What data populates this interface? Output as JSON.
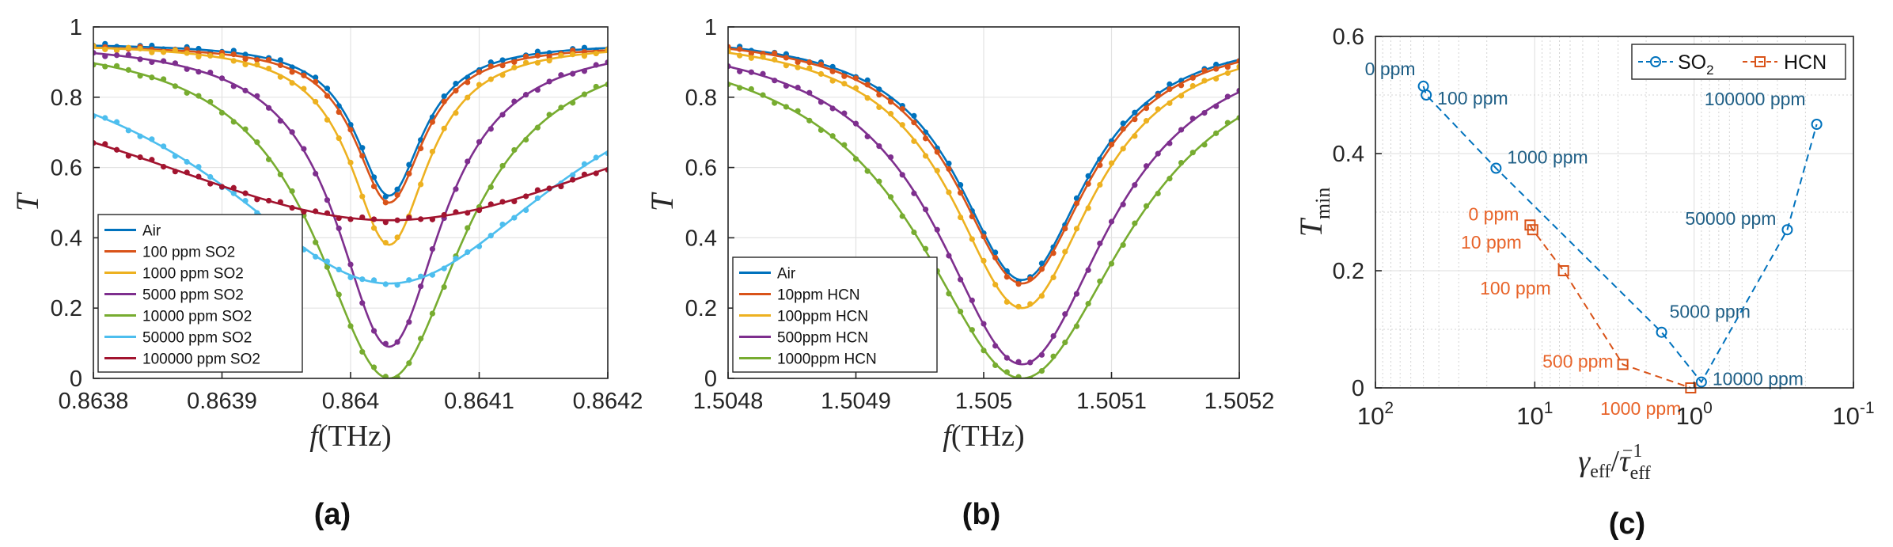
{
  "colors": {
    "blue": "#0072BD",
    "orange": "#D95319",
    "yellow": "#EDB120",
    "purple": "#7E2F8E",
    "green": "#77AC30",
    "lightblue": "#4DBEEE",
    "darkred": "#A2142F",
    "so2_text": "#1F5F86",
    "hcn_text": "#E8642A",
    "grid": "#e3e3e3",
    "axis": "#262626"
  },
  "chart_data": [
    {
      "id": "a",
      "panel_label": "(a)",
      "type": "line",
      "xlabel_italic": "f",
      "xlabel_unit": "(THz)",
      "ylabel": "T",
      "xlim": [
        0.8638,
        0.8642
      ],
      "ylim": [
        0,
        1
      ],
      "xticks": [
        0.8638,
        0.8639,
        0.864,
        0.8641,
        0.8642
      ],
      "xtick_labels": [
        "0.8638",
        "0.8639",
        "0.864",
        "0.8641",
        "0.8642"
      ],
      "yticks": [
        0,
        0.2,
        0.4,
        0.6,
        0.8,
        1
      ],
      "ytick_labels": [
        "0",
        "0.2",
        "0.4",
        "0.6",
        "0.8",
        "1"
      ],
      "legend": "bottom-left",
      "series": [
        {
          "name": "Air",
          "color": "blue",
          "base": 0.955,
          "min": 0.52,
          "center": 0.86403,
          "hwhm": 3.2e-05
        },
        {
          "name": "100 ppm SO2",
          "color": "orange",
          "base": 0.95,
          "min": 0.5,
          "center": 0.86403,
          "hwhm": 3.3e-05
        },
        {
          "name": "1000 ppm SO2",
          "color": "yellow",
          "base": 0.955,
          "min": 0.38,
          "center": 0.86403,
          "hwhm": 3.7e-05
        },
        {
          "name": "5000 ppm SO2",
          "color": "purple",
          "base": 0.965,
          "min": 0.09,
          "center": 0.86403,
          "hwhm": 5e-05
        },
        {
          "name": "10000 ppm SO2",
          "color": "green",
          "base": 0.98,
          "min": 0.0,
          "center": 0.86403,
          "hwhm": 7e-05
        },
        {
          "name": "50000 ppm SO2",
          "color": "lightblue",
          "base": 1.0,
          "min": 0.27,
          "center": 0.86403,
          "hwhm": 0.000165
        },
        {
          "name": "100000 ppm SO2",
          "color": "darkred",
          "base": 1.0,
          "min": 0.45,
          "center": 0.86403,
          "hwhm": 0.00028
        }
      ]
    },
    {
      "id": "b",
      "panel_label": "(b)",
      "type": "line",
      "xlabel_italic": "f",
      "xlabel_unit": "(THz)",
      "ylabel": "T",
      "xlim": [
        1.5048,
        1.5052
      ],
      "ylim": [
        0,
        1
      ],
      "xticks": [
        1.5048,
        1.5049,
        1.505,
        1.5051,
        1.5052
      ],
      "xtick_labels": [
        "1.5048",
        "1.5049",
        "1.505",
        "1.5051",
        "1.5052"
      ],
      "yticks": [
        0,
        0.2,
        0.4,
        0.6,
        0.8,
        1
      ],
      "ytick_labels": [
        "0",
        "0.2",
        "0.4",
        "0.6",
        "0.8",
        "1"
      ],
      "legend": "bottom-left",
      "series": [
        {
          "name": "Air",
          "color": "blue",
          "base": 0.99,
          "min": 0.28,
          "center": 1.50503,
          "hwhm": 6.2e-05
        },
        {
          "name": "10ppm HCN",
          "color": "orange",
          "base": 0.99,
          "min": 0.27,
          "center": 1.50503,
          "hwhm": 6.4e-05
        },
        {
          "name": "100ppm HCN",
          "color": "yellow",
          "base": 0.99,
          "min": 0.2,
          "center": 1.50503,
          "hwhm": 6.8e-05
        },
        {
          "name": "500ppm HCN",
          "color": "purple",
          "base": 0.995,
          "min": 0.04,
          "center": 1.50503,
          "hwhm": 8.2e-05
        },
        {
          "name": "1000ppm HCN",
          "color": "green",
          "base": 1.0,
          "min": 0.0,
          "center": 1.50503,
          "hwhm": 0.0001
        }
      ]
    },
    {
      "id": "c",
      "panel_label": "(c)",
      "type": "scatter",
      "xscale": "log",
      "xdir": "reverse",
      "xlabel": "γ_eff / τ_eff^-1",
      "ylabel": "T_min",
      "xlim": [
        100,
        0.1
      ],
      "ylim": [
        0,
        0.6
      ],
      "xticks": [
        100,
        10,
        1,
        0.1
      ],
      "xtick_labels": [
        {
          "base": "10",
          "exp": "2"
        },
        {
          "base": "10",
          "exp": "1"
        },
        {
          "base": "10",
          "exp": "0"
        },
        {
          "base": "10",
          "exp": "-1"
        }
      ],
      "yticks": [
        0,
        0.2,
        0.4,
        0.6
      ],
      "ytick_labels": [
        "0",
        "0.2",
        "0.4",
        "0.6"
      ],
      "legend": "top-right",
      "series": [
        {
          "name": "SO",
          "name_sub": "2",
          "color": "blue",
          "text_color": "so2_text",
          "marker": "circle",
          "points": [
            {
              "x": 50,
              "y": 0.515,
              "label": "0 ppm"
            },
            {
              "x": 48,
              "y": 0.5,
              "label": "100 ppm"
            },
            {
              "x": 17.5,
              "y": 0.375,
              "label": "1000 ppm"
            },
            {
              "x": 1.6,
              "y": 0.095,
              "label": "5000 ppm"
            },
            {
              "x": 0.9,
              "y": 0.01,
              "label": "10000 ppm"
            },
            {
              "x": 0.26,
              "y": 0.27,
              "label": "50000 ppm"
            },
            {
              "x": 0.17,
              "y": 0.45,
              "label": "100000 ppm"
            }
          ]
        },
        {
          "name": "HCN",
          "color": "orange",
          "text_color": "hcn_text",
          "marker": "square",
          "points": [
            {
              "x": 10.7,
              "y": 0.278,
              "label": "0 ppm"
            },
            {
              "x": 10.3,
              "y": 0.27,
              "label": "10 ppm"
            },
            {
              "x": 6.6,
              "y": 0.2,
              "label": "100 ppm"
            },
            {
              "x": 2.8,
              "y": 0.04,
              "label": "500 ppm"
            },
            {
              "x": 1.05,
              "y": 0.0,
              "label": "1000 ppm"
            }
          ]
        }
      ]
    }
  ]
}
